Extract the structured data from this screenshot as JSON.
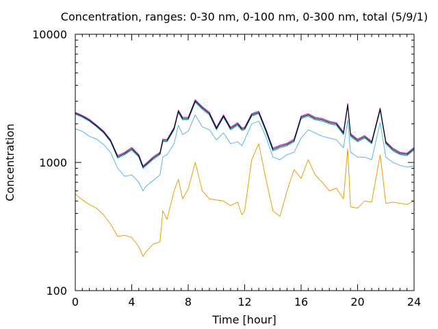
{
  "chart_data": {
    "type": "line",
    "title": "Concentration, ranges: 0-30 nm, 0-100 nm, 0-300 nm, total (5/9/1)",
    "xlabel": "Time [hour]",
    "ylabel": "Concentration",
    "xlim": [
      0,
      24
    ],
    "ylim": [
      100,
      10000
    ],
    "yscale": "log",
    "grid": false,
    "x_ticks": [
      0,
      4,
      8,
      12,
      16,
      20,
      24
    ],
    "x_tick_labels": [
      "0",
      "4",
      "8",
      "12",
      "16",
      "20",
      "24"
    ],
    "x_minor_step": 0.5,
    "y_ticks": [
      100,
      1000,
      10000
    ],
    "y_tick_labels": [
      "100",
      "1000",
      "10000"
    ],
    "x": [
      0,
      0.5,
      1,
      1.5,
      2,
      2.5,
      3,
      3.5,
      4,
      4.5,
      4.8,
      5,
      5.5,
      6,
      6.2,
      6.5,
      7,
      7.3,
      7.6,
      8,
      8.5,
      9,
      9.5,
      10,
      10.5,
      11,
      11.5,
      11.8,
      12,
      12.5,
      13,
      13.5,
      14,
      14.5,
      15,
      15.5,
      16,
      16.5,
      17,
      17.5,
      18,
      18.5,
      19,
      19.3,
      19.5,
      20,
      20.5,
      21,
      21.6,
      22,
      22.5,
      23,
      23.5,
      24
    ],
    "series": [
      {
        "key": "s30",
        "color": "#e69f00",
        "values": [
          570,
          510,
          470,
          440,
          390,
          330,
          265,
          270,
          260,
          220,
          185,
          200,
          230,
          240,
          420,
          360,
          600,
          740,
          520,
          620,
          1000,
          600,
          520,
          510,
          500,
          460,
          490,
          390,
          420,
          1050,
          1400,
          750,
          420,
          380,
          600,
          880,
          750,
          1050,
          800,
          700,
          600,
          630,
          520,
          1280,
          450,
          440,
          500,
          490,
          1150,
          480,
          490,
          480,
          470,
          500
        ]
      },
      {
        "key": "s100",
        "color": "#56b4e9",
        "values": [
          1830,
          1750,
          1600,
          1520,
          1380,
          1200,
          900,
          780,
          800,
          700,
          600,
          650,
          720,
          800,
          1100,
          1150,
          1400,
          1950,
          1650,
          1750,
          2350,
          1900,
          1800,
          1500,
          1700,
          1400,
          1450,
          1350,
          1500,
          2000,
          2100,
          1600,
          1100,
          1050,
          1150,
          1200,
          1550,
          1800,
          1700,
          1600,
          1550,
          1500,
          1300,
          2150,
          1200,
          1100,
          1100,
          1050,
          2050,
          1100,
          1000,
          950,
          920,
          940
        ]
      },
      {
        "key": "s300",
        "color": "#009e73",
        "values": [
          2380,
          2250,
          2100,
          1900,
          1700,
          1450,
          1080,
          1150,
          1250,
          1100,
          900,
          940,
          1050,
          1150,
          1450,
          1450,
          1800,
          2450,
          2150,
          2150,
          2950,
          2600,
          2350,
          1800,
          2250,
          1800,
          1950,
          1780,
          1800,
          2300,
          2400,
          1750,
          1230,
          1300,
          1350,
          1450,
          2200,
          2300,
          2150,
          2100,
          2000,
          1950,
          1650,
          2750,
          1600,
          1450,
          1550,
          1400,
          2550,
          1400,
          1230,
          1150,
          1130,
          1250
        ]
      },
      {
        "key": "stotal",
        "color": "#9400d3",
        "values": [
          2460,
          2330,
          2170,
          1960,
          1760,
          1500,
          1130,
          1200,
          1310,
          1150,
          940,
          980,
          1100,
          1200,
          1520,
          1510,
          1880,
          2560,
          2250,
          2250,
          3080,
          2720,
          2460,
          1880,
          2350,
          1880,
          2040,
          1860,
          1880,
          2400,
          2510,
          1830,
          1290,
          1360,
          1410,
          1520,
          2300,
          2400,
          2250,
          2200,
          2090,
          2040,
          1730,
          2880,
          1680,
          1520,
          1620,
          1460,
          2660,
          1460,
          1290,
          1200,
          1180,
          1310
        ]
      },
      {
        "key": "sblack",
        "color": "#000000",
        "values": [
          2420,
          2290,
          2130,
          1930,
          1730,
          1475,
          1105,
          1175,
          1280,
          1125,
          920,
          960,
          1075,
          1175,
          1485,
          1480,
          1840,
          2505,
          2200,
          2200,
          3015,
          2660,
          2405,
          1840,
          2300,
          1840,
          1995,
          1820,
          1840,
          2350,
          2455,
          1790,
          1260,
          1330,
          1380,
          1485,
          2250,
          2350,
          2200,
          2150,
          2045,
          1995,
          1690,
          2815,
          1640,
          1485,
          1585,
          1430,
          2605,
          1430,
          1260,
          1175,
          1155,
          1280
        ]
      }
    ]
  }
}
